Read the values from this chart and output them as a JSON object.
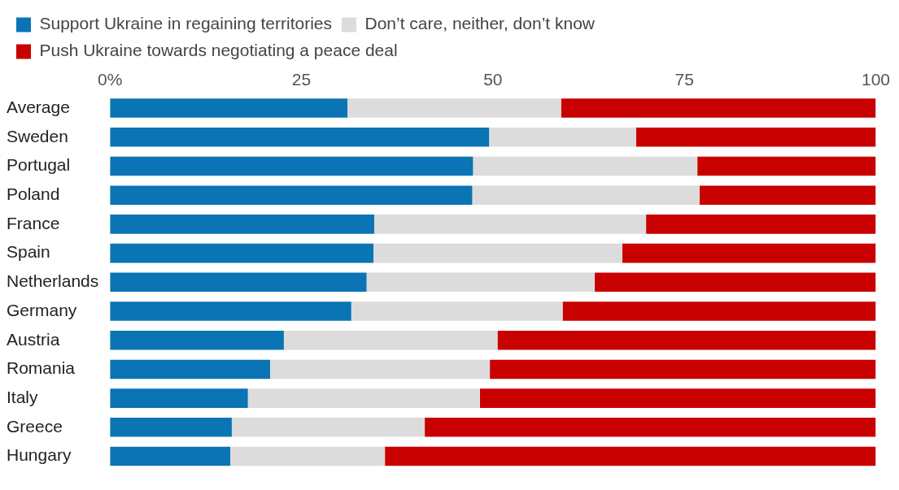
{
  "chart_data": {
    "type": "bar",
    "orientation": "horizontal",
    "stacked": true,
    "legend": "top left",
    "grid": false,
    "categories": [
      "Average",
      "Sweden",
      "Portugal",
      "Poland",
      "France",
      "Spain",
      "Netherlands",
      "Germany",
      "Austria",
      "Romania",
      "Italy",
      "Greece",
      "Hungary"
    ],
    "series": [
      {
        "name": "Support Ukraine in regaining territories",
        "color": "#0a74b4",
        "values": [
          31.0,
          49.5,
          47.4,
          47.3,
          34.5,
          34.4,
          33.5,
          31.5,
          22.7,
          20.9,
          18.0,
          15.9,
          15.7
        ]
      },
      {
        "name": "Don’t care, neither, don’t know",
        "color": "#dcdcdc",
        "values": [
          27.9,
          19.2,
          29.3,
          29.7,
          35.5,
          32.5,
          29.8,
          27.6,
          27.9,
          28.7,
          30.3,
          25.2,
          20.2
        ]
      },
      {
        "name": "Push Ukraine towards negotiating a peace deal",
        "color": "#c80000",
        "values": [
          41.1,
          31.3,
          23.3,
          23.0,
          30.0,
          33.1,
          36.7,
          40.9,
          49.4,
          50.4,
          51.7,
          58.9,
          64.1
        ]
      }
    ],
    "xlim": [
      0,
      100
    ],
    "xticks": [
      {
        "value": 0,
        "label": "0%"
      },
      25,
      50,
      75,
      100
    ]
  }
}
